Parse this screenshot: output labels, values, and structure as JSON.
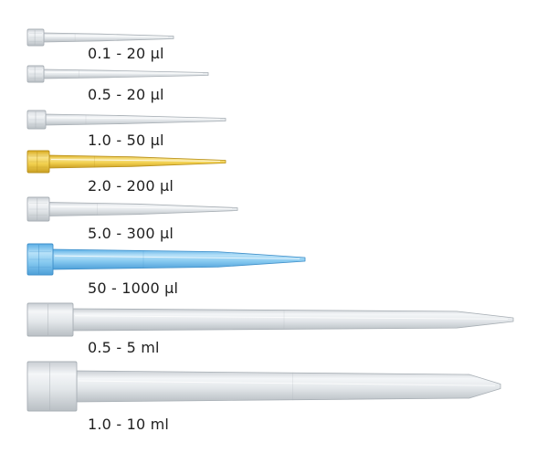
{
  "tips": [
    {
      "label": "0.1 - 20 µl",
      "tint": "clear"
    },
    {
      "label": "0.5 - 20 µl",
      "tint": "clear"
    },
    {
      "label": "1.0 - 50 µl",
      "tint": "clear"
    },
    {
      "label": "2.0 - 200 µl",
      "tint": "yellow"
    },
    {
      "label": "5.0 - 300 µl",
      "tint": "clear"
    },
    {
      "label": "50 - 1000 µl",
      "tint": "blue"
    },
    {
      "label": "0.5 - 5 ml",
      "tint": "clear"
    },
    {
      "label": "1.0 - 10 ml",
      "tint": "clear"
    }
  ],
  "colors": {
    "background": "#ffffff",
    "label_text": "#1f1f1f",
    "clear_tip": "#dfe3e6",
    "yellow_tip": "#f3d25a",
    "blue_tip": "#7cc6ef"
  }
}
